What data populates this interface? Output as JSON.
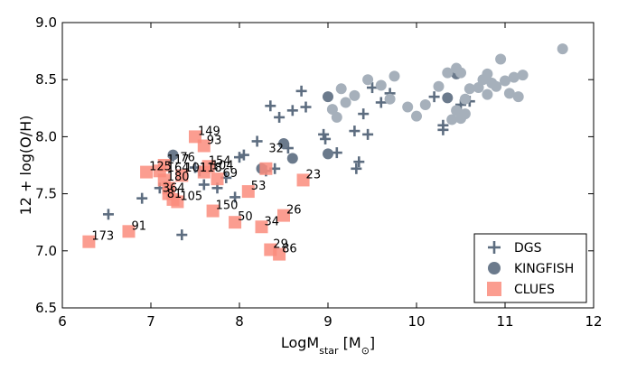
{
  "chart_data": {
    "type": "scatter",
    "xlabel_main": "LogM",
    "xlabel_sub": "star",
    "xlabel_unit": "[M",
    "xlabel_close": "]",
    "ylabel": "12 + log(O/H)",
    "xlim": [
      6,
      12
    ],
    "ylim": [
      6.5,
      9.0
    ],
    "xticks": [
      6,
      7,
      8,
      9,
      10,
      11,
      12
    ],
    "yticks": [
      6.5,
      7.0,
      7.5,
      8.0,
      8.5,
      9.0
    ],
    "xtick_labels": [
      "6",
      "7",
      "8",
      "9",
      "10",
      "11",
      "12"
    ],
    "ytick_labels": [
      "6.5",
      "7.0",
      "7.5",
      "8.0",
      "8.5",
      "9.0"
    ],
    "legend_position": "lower-right",
    "series": [
      {
        "name": "DGS",
        "marker": "plus",
        "color": "#5d6d80",
        "points": [
          [
            6.52,
            7.32
          ],
          [
            6.9,
            7.46
          ],
          [
            7.25,
            7.83
          ],
          [
            7.1,
            7.55
          ],
          [
            7.35,
            7.14
          ],
          [
            7.5,
            7.73
          ],
          [
            7.6,
            7.58
          ],
          [
            7.75,
            7.55
          ],
          [
            7.85,
            7.64
          ],
          [
            8.0,
            7.82
          ],
          [
            8.05,
            7.84
          ],
          [
            8.2,
            7.96
          ],
          [
            8.3,
            7.7
          ],
          [
            8.4,
            7.72
          ],
          [
            8.55,
            7.9
          ],
          [
            8.35,
            8.27
          ],
          [
            8.45,
            8.17
          ],
          [
            8.6,
            8.23
          ],
          [
            8.7,
            8.4
          ],
          [
            8.75,
            8.26
          ],
          [
            8.95,
            8.02
          ],
          [
            8.97,
            7.98
          ],
          [
            9.1,
            7.86
          ],
          [
            9.3,
            8.05
          ],
          [
            9.32,
            7.72
          ],
          [
            9.35,
            7.78
          ],
          [
            9.4,
            8.2
          ],
          [
            9.45,
            8.02
          ],
          [
            9.5,
            8.43
          ],
          [
            9.6,
            8.3
          ],
          [
            9.7,
            8.38
          ],
          [
            10.2,
            8.35
          ],
          [
            10.3,
            8.06
          ],
          [
            10.3,
            8.1
          ],
          [
            10.5,
            8.28
          ],
          [
            10.6,
            8.31
          ],
          [
            7.95,
            7.47
          ],
          [
            7.55,
            7.7
          ]
        ]
      },
      {
        "name": "KINGFISH",
        "marker": "circle",
        "color": "#6b7a8c",
        "points": [
          [
            7.25,
            7.84
          ],
          [
            8.25,
            7.72
          ],
          [
            8.5,
            7.94
          ],
          [
            8.6,
            7.81
          ],
          [
            9.0,
            8.35
          ],
          [
            9.0,
            7.85
          ],
          [
            10.35,
            8.34
          ],
          [
            10.45,
            8.55
          ]
        ]
      },
      {
        "name": "KINGFISH_faded",
        "legend": false,
        "marker": "circle",
        "color": "#a6b0bb",
        "points": [
          [
            9.05,
            8.24
          ],
          [
            9.1,
            8.17
          ],
          [
            9.15,
            8.42
          ],
          [
            9.2,
            8.3
          ],
          [
            9.3,
            8.36
          ],
          [
            9.45,
            8.5
          ],
          [
            9.6,
            8.45
          ],
          [
            9.7,
            8.33
          ],
          [
            9.75,
            8.53
          ],
          [
            9.9,
            8.26
          ],
          [
            10.0,
            8.18
          ],
          [
            10.1,
            8.28
          ],
          [
            10.25,
            8.44
          ],
          [
            10.35,
            8.56
          ],
          [
            10.4,
            8.15
          ],
          [
            10.45,
            8.6
          ],
          [
            10.5,
            8.56
          ],
          [
            10.55,
            8.33
          ],
          [
            10.6,
            8.42
          ],
          [
            10.7,
            8.43
          ],
          [
            10.75,
            8.5
          ],
          [
            10.8,
            8.37
          ],
          [
            10.85,
            8.47
          ],
          [
            10.9,
            8.44
          ],
          [
            10.95,
            8.68
          ],
          [
            11.0,
            8.49
          ],
          [
            11.05,
            8.38
          ],
          [
            11.1,
            8.52
          ],
          [
            11.15,
            8.35
          ],
          [
            11.2,
            8.54
          ],
          [
            11.65,
            8.77
          ],
          [
            10.45,
            8.23
          ],
          [
            10.5,
            8.16
          ],
          [
            10.55,
            8.2
          ],
          [
            10.8,
            8.55
          ]
        ]
      },
      {
        "name": "CLUES",
        "marker": "square",
        "color": "#fa8c7d",
        "points": [
          [
            6.3,
            7.08
          ],
          [
            6.75,
            7.17
          ],
          [
            6.95,
            7.69
          ],
          [
            7.1,
            7.7
          ],
          [
            7.15,
            7.75
          ],
          [
            7.15,
            7.62
          ],
          [
            7.2,
            7.55
          ],
          [
            7.2,
            7.5
          ],
          [
            7.25,
            7.45
          ],
          [
            7.3,
            7.43
          ],
          [
            7.35,
            7.66
          ],
          [
            7.5,
            8.0
          ],
          [
            7.6,
            7.92
          ],
          [
            7.6,
            7.69
          ],
          [
            7.65,
            7.74
          ],
          [
            7.7,
            7.35
          ],
          [
            7.75,
            7.63
          ],
          [
            7.95,
            7.25
          ],
          [
            8.1,
            7.52
          ],
          [
            8.25,
            7.21
          ],
          [
            8.3,
            7.72
          ],
          [
            8.35,
            7.01
          ],
          [
            8.45,
            6.97
          ],
          [
            8.5,
            7.31
          ],
          [
            8.72,
            7.62
          ]
        ]
      }
    ],
    "annotations": [
      {
        "text": "173",
        "x": 6.3,
        "y": 7.08
      },
      {
        "text": "91",
        "x": 6.75,
        "y": 7.17
      },
      {
        "text": "125",
        "x": 6.95,
        "y": 7.69
      },
      {
        "text": "117",
        "x": 7.15,
        "y": 7.75
      },
      {
        "text": "76",
        "x": 7.3,
        "y": 7.77
      },
      {
        "text": "164",
        "x": 7.15,
        "y": 7.68
      },
      {
        "text": "101",
        "x": 7.35,
        "y": 7.68
      },
      {
        "text": "180",
        "x": 7.15,
        "y": 7.6
      },
      {
        "text": "364",
        "x": 7.1,
        "y": 7.5
      },
      {
        "text": "81",
        "x": 7.15,
        "y": 7.45
      },
      {
        "text": "105",
        "x": 7.3,
        "y": 7.43
      },
      {
        "text": "149",
        "x": 7.5,
        "y": 8.0
      },
      {
        "text": "93",
        "x": 7.6,
        "y": 7.92
      },
      {
        "text": "154",
        "x": 7.62,
        "y": 7.74
      },
      {
        "text": "104",
        "x": 7.65,
        "y": 7.7
      },
      {
        "text": "118",
        "x": 7.52,
        "y": 7.68
      },
      {
        "text": "69",
        "x": 7.78,
        "y": 7.63
      },
      {
        "text": "150",
        "x": 7.7,
        "y": 7.35
      },
      {
        "text": "53",
        "x": 8.1,
        "y": 7.52
      },
      {
        "text": "50",
        "x": 7.95,
        "y": 7.25
      },
      {
        "text": "34",
        "x": 8.25,
        "y": 7.21
      },
      {
        "text": "32",
        "x": 8.3,
        "y": 7.85
      },
      {
        "text": "26",
        "x": 8.5,
        "y": 7.31
      },
      {
        "text": "23",
        "x": 8.72,
        "y": 7.62
      },
      {
        "text": "29",
        "x": 8.35,
        "y": 7.01
      },
      {
        "text": "86",
        "x": 8.45,
        "y": 6.97
      }
    ]
  }
}
